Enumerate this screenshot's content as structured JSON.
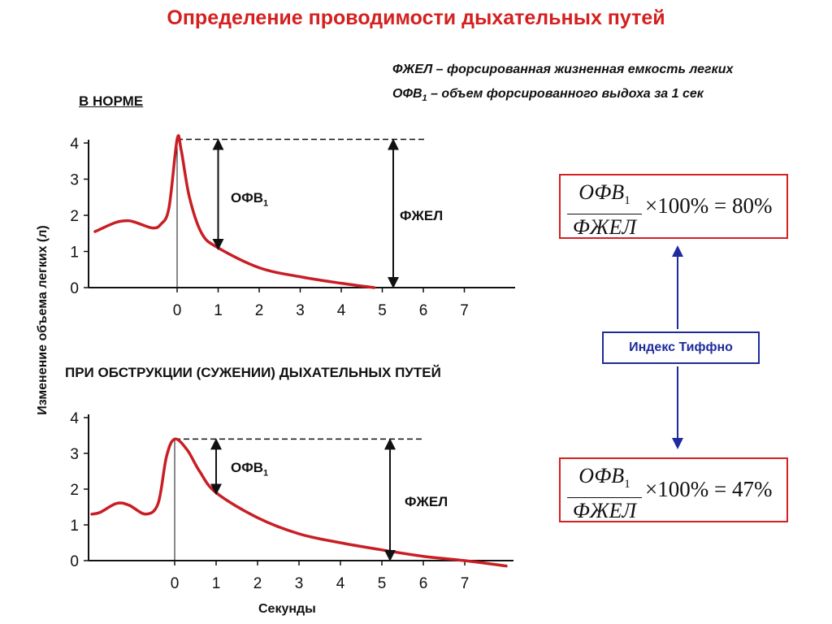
{
  "title": "Определение проводимости дыхательных путей",
  "definitions": {
    "fvc": "ФЖЕЛ – форсированная жизненная емкость легких",
    "fev1_prefix": "ОФВ",
    "fev1_sub": "1",
    "fev1_rest": " – объем форсированного выдоха за 1 сек"
  },
  "sections": {
    "normal": "В НОРМЕ",
    "obstruction": "ПРИ ОБСТРУКЦИИ  (СУЖЕНИИ)  ДЫХАТЕЛЬНЫХ ПУТЕЙ"
  },
  "axes": {
    "ylabel": "Изменение объема легких (л)",
    "xlabel": "Секунды",
    "y_ticks": [
      "0",
      "1",
      "2",
      "3",
      "4"
    ],
    "x_ticks": [
      "0",
      "1",
      "2",
      "3",
      "4",
      "5",
      "6",
      "7"
    ]
  },
  "labels": {
    "fev_prefix": "ОФВ",
    "fev_sub": "1",
    "fvc": "ФЖЕЛ"
  },
  "formula": {
    "num": "ОФВ",
    "num_sub": "1",
    "den": "ФЖЕЛ",
    "times": "×100% = ",
    "normal_value": "80%",
    "obstruction_value": "47%"
  },
  "index_label": "Индекс Тиффно",
  "colors": {
    "accent": "#d42020",
    "curve": "#c81e24",
    "blue": "#1f2a9c"
  },
  "chart_data": [
    {
      "type": "line",
      "title": "В НОРМЕ",
      "xlabel": "Секунды",
      "ylabel": "Изменение объема легких (л)",
      "x_ticks": [
        0,
        1,
        2,
        3,
        4,
        5,
        6,
        7
      ],
      "y_ticks": [
        0,
        1,
        2,
        3,
        4
      ],
      "ylim": [
        0,
        4
      ],
      "peak": {
        "x": 0,
        "y": 4.1
      },
      "fev1_at_1s": 1.1,
      "fvc_end_x": 4.8,
      "series": [
        {
          "x": [
            -2.0,
            -1.5,
            -1.2,
            -1.0,
            -0.6,
            -0.4,
            -0.2,
            0,
            0.1,
            0.3,
            0.6,
            1,
            2,
            3,
            4,
            4.8
          ],
          "y": [
            1.55,
            1.8,
            1.85,
            1.8,
            1.65,
            1.75,
            2.2,
            4.1,
            3.8,
            2.5,
            1.5,
            1.1,
            0.55,
            0.3,
            0.12,
            0
          ]
        }
      ]
    },
    {
      "type": "line",
      "title": "ПРИ ОБСТРУКЦИИ  (СУЖЕНИИ)  ДЫХАТЕЛЬНЫХ ПУТЕЙ",
      "xlabel": "Секунды",
      "ylabel": "Изменение объема легких (л)",
      "x_ticks": [
        0,
        1,
        2,
        3,
        4,
        5,
        6,
        7
      ],
      "y_ticks": [
        0,
        1,
        2,
        3,
        4
      ],
      "ylim": [
        0,
        4
      ],
      "peak": {
        "x": 0,
        "y": 3.4
      },
      "fev1_at_1s": 1.9,
      "fvc_end_x": 7.0,
      "series": [
        {
          "x": [
            -2.0,
            -1.8,
            -1.4,
            -1.1,
            -0.7,
            -0.4,
            -0.2,
            0,
            0.3,
            0.6,
            1,
            2,
            3,
            4,
            5,
            6,
            7,
            8
          ],
          "y": [
            1.3,
            1.35,
            1.6,
            1.55,
            1.3,
            1.6,
            2.9,
            3.4,
            3.1,
            2.5,
            1.9,
            1.2,
            0.75,
            0.5,
            0.3,
            0.12,
            0.0,
            -0.15
          ]
        }
      ]
    }
  ]
}
